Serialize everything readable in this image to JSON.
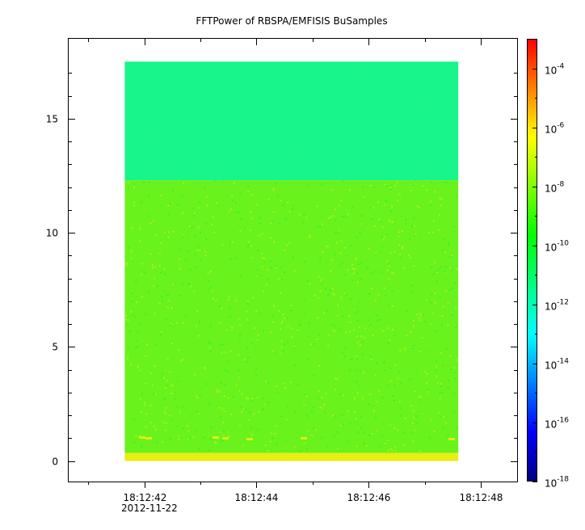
{
  "chart_data": {
    "type": "heatmap",
    "title": "FFTPower of RBSPA/EMFISIS  BuSamples",
    "xlabel": "",
    "ylabel": "",
    "x_ticks": [
      {
        "label": "18:12:42",
        "sec": 42
      },
      {
        "label": "18:12:44",
        "sec": 44
      },
      {
        "label": "18:12:46",
        "sec": 46
      },
      {
        "label": "18:12:48",
        "sec": 48
      }
    ],
    "x_minor_ticks_sec": [
      41,
      43,
      45,
      47
    ],
    "x_date_label": "2012-11-22",
    "xlim_sec": [
      40.65,
      48.65
    ],
    "data_x_range_sec": [
      41.65,
      47.6
    ],
    "y_ticks": [
      0,
      5,
      10,
      15
    ],
    "ylim": [
      -0.9,
      18.5
    ],
    "data_y_range": [
      0.0,
      17.5
    ],
    "colorbar": {
      "scale": "log",
      "range": [
        1e-18,
        0.001
      ],
      "tick_bases": [
        "10",
        "10",
        "10",
        "10",
        "10",
        "10",
        "10",
        "10"
      ],
      "tick_exponents": [
        "-4",
        "-6",
        "-8",
        "-10",
        "-12",
        "-14",
        "-16",
        "-18"
      ],
      "tick_log_values": [
        -4,
        -6,
        -8,
        -10,
        -12,
        -14,
        -16,
        -18
      ],
      "colors": [
        "#00007f",
        "#0000ff",
        "#007fff",
        "#00ffff",
        "#00ff7f",
        "#00ff00",
        "#7fff00",
        "#ffff00",
        "#ff7f00",
        "#ff0000"
      ]
    },
    "bands": [
      {
        "y_range": [
          12.3,
          17.5
        ],
        "level": "~1e-12",
        "color": "#18f58a"
      },
      {
        "y_range": [
          0.35,
          12.3
        ],
        "level": "~1e-10",
        "color": "#6af21c"
      },
      {
        "y_range": [
          0.0,
          0.35
        ],
        "level": "~1e-8",
        "color": "#e8ee10"
      }
    ]
  }
}
